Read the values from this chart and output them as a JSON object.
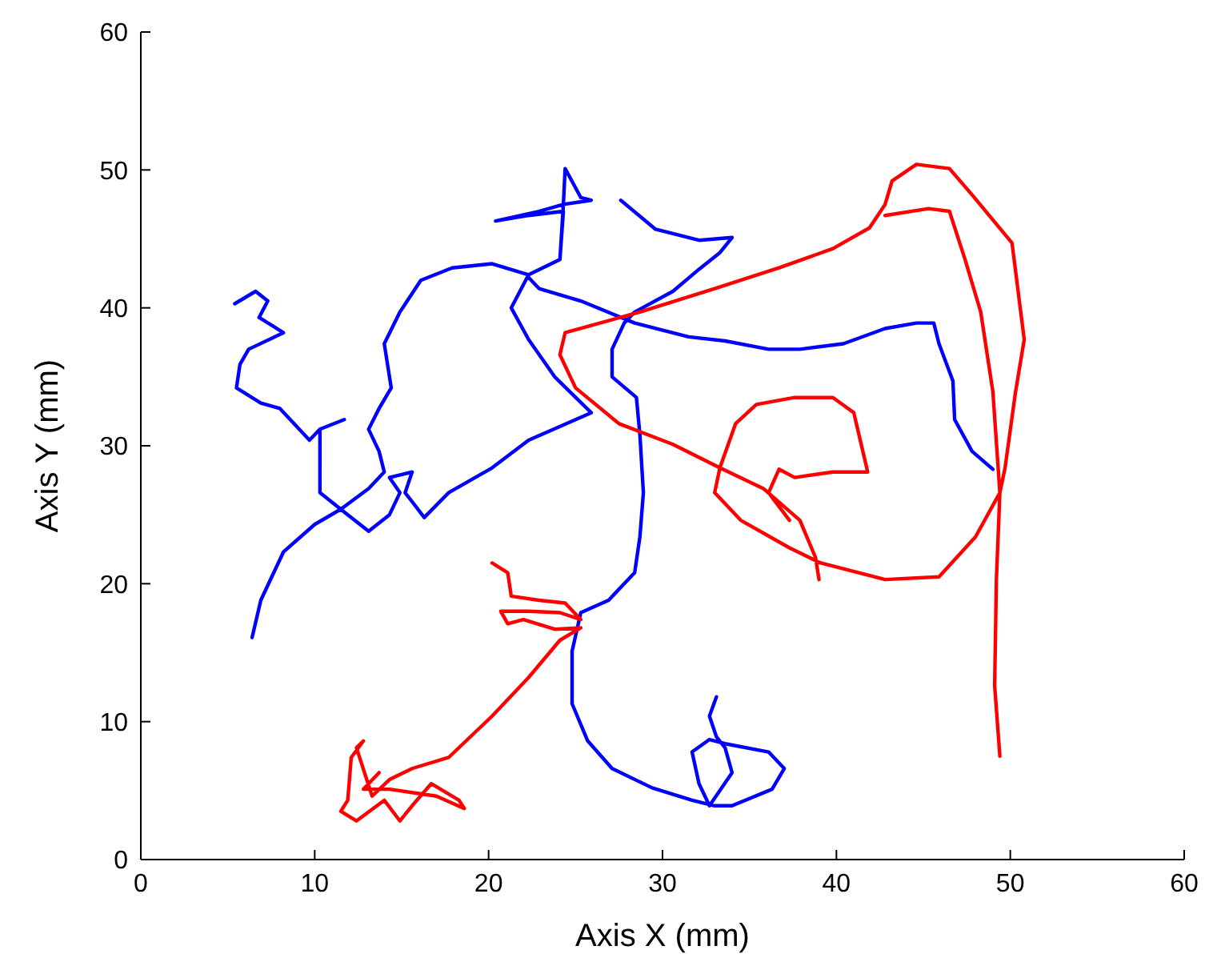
{
  "chart_data": {
    "type": "line",
    "xlabel": "Axis X (mm)",
    "ylabel": "Axis Y (mm)",
    "xlim": [
      0,
      60
    ],
    "ylim": [
      0,
      60
    ],
    "xticks": [
      0,
      10,
      20,
      30,
      40,
      50,
      60
    ],
    "yticks": [
      0,
      10,
      20,
      30,
      40,
      50,
      60
    ],
    "grid": false,
    "marker": "none",
    "line_style": "solid",
    "series": [
      {
        "color": "#0000ff",
        "x": [
          6.4,
          6.9,
          8.2,
          10.0,
          11.5,
          13.1,
          14.0,
          13.7,
          13.1,
          13.7,
          14.4,
          14.0,
          14.9,
          16.1,
          17.9,
          20.2,
          22.3,
          24.1,
          24.3,
          22.3,
          20.4,
          22.9,
          24.3,
          24.4,
          25.3,
          25.9,
          24.3,
          24.1,
          22.3,
          21.3,
          22.3,
          23.8,
          25.9,
          22.3,
          20.2,
          17.7,
          16.3,
          15.2,
          15.6,
          14.3,
          14.9,
          14.3,
          13.1,
          11.9,
          10.3,
          10.3,
          11.7,
          10.3,
          9.7,
          8.0,
          6.9,
          5.5,
          5.7,
          6.2,
          8.2,
          6.8,
          7.3,
          6.6,
          5.4,
          null,
          27.6,
          29.6,
          32.1,
          34.0,
          33.3,
          32.1,
          30.6,
          28.4,
          27.8,
          27.1,
          27.1,
          28.5,
          28.7,
          28.9,
          28.7,
          28.4,
          26.9,
          25.3,
          24.8,
          24.8,
          25.7,
          27.1,
          29.4,
          31.7,
          33.0,
          34.0,
          36.3,
          37.0,
          36.1,
          33.6,
          32.7,
          31.7,
          32.1,
          32.7,
          34.0,
          33.6,
          33.1,
          32.7,
          33.1,
          null,
          49.0,
          47.8,
          46.8,
          46.7,
          45.9,
          45.6,
          44.6,
          42.8,
          40.4,
          37.9,
          36.1,
          33.6,
          31.5,
          28.4,
          25.3,
          22.9,
          22.3
        ],
        "values": [
          16.1,
          18.8,
          22.3,
          24.3,
          25.4,
          26.9,
          28.1,
          29.6,
          31.2,
          32.7,
          34.2,
          37.4,
          39.7,
          42.0,
          42.9,
          43.2,
          42.4,
          43.5,
          47.0,
          46.7,
          46.3,
          47.0,
          47.5,
          50.1,
          48.0,
          47.8,
          47.5,
          43.5,
          42.4,
          40.0,
          37.7,
          35.0,
          32.4,
          30.4,
          28.4,
          26.6,
          24.8,
          26.6,
          28.1,
          27.7,
          26.6,
          25.0,
          23.8,
          25.0,
          26.6,
          31.2,
          31.9,
          31.2,
          30.4,
          32.7,
          33.1,
          34.2,
          35.9,
          37.0,
          38.2,
          39.3,
          40.5,
          41.2,
          40.3,
          null,
          47.8,
          45.7,
          44.9,
          45.1,
          44.0,
          42.8,
          41.2,
          39.7,
          38.9,
          37.0,
          35.0,
          33.5,
          30.8,
          26.6,
          23.4,
          20.8,
          18.8,
          17.9,
          15.1,
          11.3,
          8.6,
          6.6,
          5.2,
          4.3,
          3.9,
          3.9,
          5.1,
          6.6,
          7.8,
          8.4,
          8.7,
          7.8,
          5.5,
          3.9,
          6.3,
          8.1,
          8.9,
          10.4,
          11.8,
          null,
          28.3,
          29.6,
          31.9,
          34.7,
          37.4,
          38.9,
          38.9,
          38.5,
          37.4,
          37.0,
          37.0,
          37.6,
          37.9,
          38.9,
          40.5,
          41.4,
          42.2
        ]
      },
      {
        "color": "#ff0000",
        "x": [
          49.4,
          49.1,
          49.2,
          49.4,
          49.7,
          50.3,
          50.8,
          50.1,
          47.8,
          46.5,
          44.6,
          43.2,
          42.8,
          41.9,
          39.8,
          36.7,
          33.0,
          28.7,
          24.4,
          24.1,
          25.0,
          27.5,
          30.6,
          33.3,
          35.8,
          37.9,
          38.8,
          39.0,
          null,
          37.3,
          36.1,
          36.7,
          37.6,
          39.8,
          41.8,
          41.0,
          39.8,
          37.6,
          35.4,
          34.2,
          33.3,
          33.0,
          34.5,
          37.3,
          39.1,
          42.8,
          45.9,
          48.0,
          49.4,
          49.0,
          48.3,
          47.4,
          46.5,
          45.3,
          42.8,
          null,
          20.2,
          21.1,
          21.3,
          22.9,
          24.4,
          25.3,
          24.1,
          22.3,
          20.7,
          21.1,
          22.0,
          23.8,
          25.3,
          24.1,
          22.3,
          20.2,
          17.7,
          15.6,
          14.3,
          13.3,
          12.4,
          12.8,
          12.1,
          11.9,
          11.5,
          12.4,
          14.0,
          14.9,
          15.6,
          16.7,
          18.3,
          18.6,
          17.0,
          14.3,
          12.8,
          13.7
        ],
        "values": [
          7.5,
          12.6,
          20.3,
          26.6,
          28.4,
          33.9,
          37.7,
          44.7,
          48.2,
          50.1,
          50.4,
          49.2,
          47.5,
          45.8,
          44.3,
          42.9,
          41.4,
          39.7,
          38.2,
          36.6,
          34.2,
          31.6,
          30.1,
          28.4,
          26.9,
          24.6,
          21.9,
          20.3,
          null,
          24.6,
          26.6,
          28.3,
          27.7,
          28.1,
          28.1,
          32.4,
          33.5,
          33.5,
          33.0,
          31.6,
          28.4,
          26.6,
          24.6,
          22.6,
          21.5,
          20.3,
          20.5,
          23.4,
          26.6,
          33.9,
          39.7,
          43.5,
          47.0,
          47.2,
          46.7,
          null,
          21.5,
          20.8,
          19.1,
          18.8,
          18.6,
          17.4,
          17.9,
          18.0,
          18.0,
          17.1,
          17.4,
          16.7,
          16.8,
          15.9,
          13.2,
          10.4,
          7.4,
          6.6,
          5.8,
          4.6,
          8.1,
          8.6,
          7.4,
          4.3,
          3.5,
          2.8,
          4.3,
          2.8,
          3.9,
          5.5,
          4.3,
          3.7,
          4.6,
          5.1,
          5.1,
          6.3
        ]
      }
    ]
  }
}
